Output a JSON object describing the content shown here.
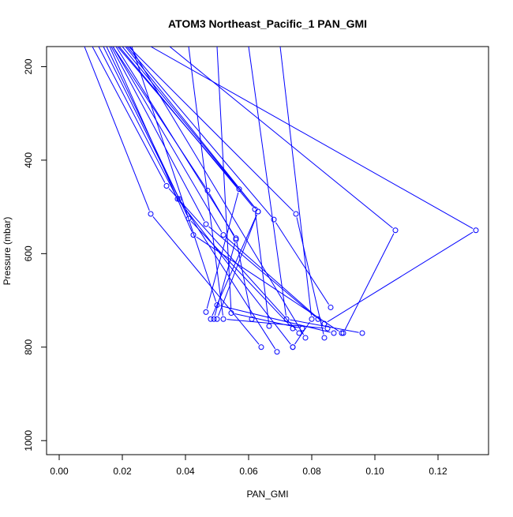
{
  "chart_data": {
    "type": "line",
    "title": "ATOM3 Northeast_Pacific_1 PAN_GMI",
    "xlabel": "PAN_GMI",
    "ylabel": "Pressure (mbar)",
    "xlim": [
      -0.004,
      0.136
    ],
    "ylim": [
      1030,
      157
    ],
    "y_reversed": true,
    "x_ticks": [
      0.0,
      0.02,
      0.04,
      0.06,
      0.08,
      0.1,
      0.12
    ],
    "x_tick_labels": [
      "0.00",
      "0.02",
      "0.04",
      "0.06",
      "0.08",
      "0.10",
      "0.12"
    ],
    "y_ticks": [
      200,
      400,
      600,
      800,
      1000
    ],
    "y_tick_labels": [
      "200",
      "400",
      "600",
      "800",
      "1000"
    ],
    "grid": false,
    "legend": false,
    "series_color": "#0000ff",
    "series": [
      {
        "values": [
          [
            0.008,
            157
          ],
          [
            0.029,
            515
          ],
          [
            0.064,
            800
          ]
        ]
      },
      {
        "values": [
          [
            0.0105,
            157
          ],
          [
            0.034,
            455
          ],
          [
            0.076,
            770
          ]
        ]
      },
      {
        "values": [
          [
            0.0125,
            157
          ],
          [
            0.0375,
            483
          ],
          [
            0.074,
            800
          ]
        ]
      },
      {
        "values": [
          [
            0.014,
            157
          ],
          [
            0.038,
            483
          ],
          [
            0.069,
            810
          ]
        ]
      },
      {
        "values": [
          [
            0.015,
            157
          ],
          [
            0.041,
            525
          ],
          [
            0.074,
            760
          ]
        ]
      },
      {
        "values": [
          [
            0.016,
            157
          ],
          [
            0.0425,
            560
          ],
          [
            0.0895,
            770
          ]
        ]
      },
      {
        "values": [
          [
            0.0165,
            157
          ],
          [
            0.0465,
            537
          ],
          [
            0.082,
            740
          ]
        ]
      },
      {
        "values": [
          [
            0.017,
            157
          ],
          [
            0.047,
            465
          ],
          [
            0.056,
            570
          ],
          [
            0.049,
            740
          ]
        ]
      },
      {
        "values": [
          [
            0.017,
            157
          ],
          [
            0.052,
            560
          ],
          [
            0.084,
            750
          ]
        ]
      },
      {
        "values": [
          [
            0.018,
            157
          ],
          [
            0.056,
            567
          ],
          [
            0.061,
            740
          ]
        ]
      },
      {
        "values": [
          [
            0.0185,
            157
          ],
          [
            0.057,
            462
          ],
          [
            0.0465,
            725
          ]
        ]
      },
      {
        "values": [
          [
            0.019,
            157
          ],
          [
            0.062,
            505
          ],
          [
            0.0665,
            755
          ]
        ]
      },
      {
        "values": [
          [
            0.02,
            157
          ],
          [
            0.063,
            510
          ],
          [
            0.05,
            740
          ]
        ]
      },
      {
        "values": [
          [
            0.021,
            157
          ],
          [
            0.063,
            510
          ],
          [
            0.048,
            740
          ]
        ]
      },
      {
        "values": [
          [
            0.0215,
            157
          ],
          [
            0.068,
            527
          ],
          [
            0.086,
            715
          ]
        ]
      },
      {
        "values": [
          [
            0.022,
            157
          ],
          [
            0.075,
            515
          ],
          [
            0.084,
            780
          ]
        ]
      },
      {
        "values": [
          [
            0.0225,
            157
          ],
          [
            0.078,
            780
          ]
        ]
      },
      {
        "values": [
          [
            0.023,
            157
          ],
          [
            0.05,
            710
          ],
          [
            0.087,
            770
          ]
        ]
      },
      {
        "values": [
          [
            0.035,
            157
          ],
          [
            0.1065,
            550
          ],
          [
            0.09,
            770
          ]
        ]
      },
      {
        "values": [
          [
            0.029,
            157
          ],
          [
            0.132,
            550
          ],
          [
            0.084,
            750
          ]
        ]
      },
      {
        "values": [
          [
            0.041,
            157
          ],
          [
            0.052,
            740
          ],
          [
            0.085,
            760
          ]
        ]
      },
      {
        "values": [
          [
            0.05,
            157
          ],
          [
            0.0545,
            727
          ],
          [
            0.077,
            760
          ]
        ]
      },
      {
        "values": [
          [
            0.06,
            157
          ],
          [
            0.072,
            740
          ],
          [
            0.096,
            770
          ]
        ]
      },
      {
        "values": [
          [
            0.07,
            157
          ],
          [
            0.08,
            740
          ],
          [
            0.074,
            800
          ]
        ]
      }
    ]
  }
}
